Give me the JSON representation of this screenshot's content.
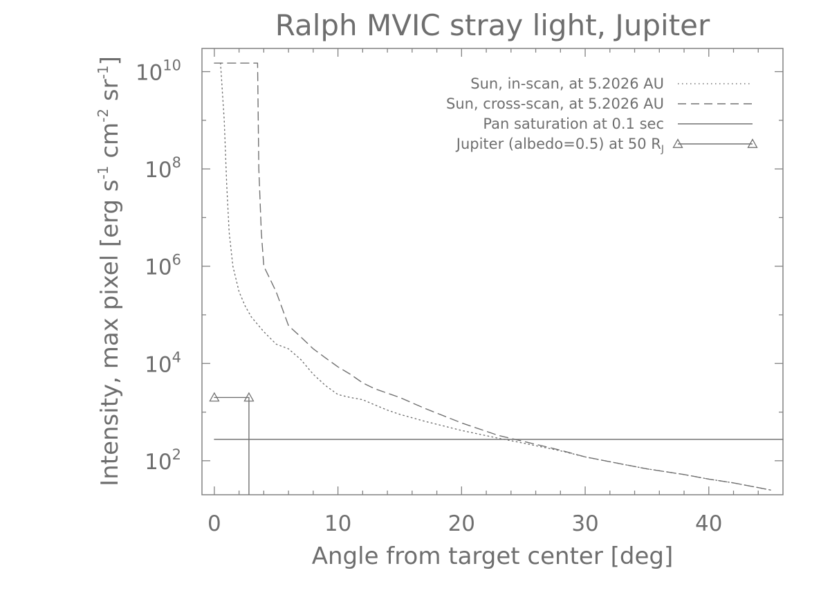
{
  "chart_data": {
    "type": "line",
    "title": "Ralph MVIC stray light, Jupiter",
    "xlabel": "Angle from target center [deg]",
    "ylabel": {
      "prefix": "Intensity, max pixel [erg s",
      "exp1": "-1",
      "mid1": " cm",
      "exp2": "-2",
      "mid2": " sr",
      "exp3": "-1",
      "suffix": "]"
    },
    "x_scale": "linear",
    "y_scale": "log",
    "xlim": [
      -1,
      46
    ],
    "ylim": [
      20,
      30000000000
    ],
    "grid": false,
    "legend_position": "top-right",
    "x_ticks": [
      {
        "value": 0,
        "label": "0"
      },
      {
        "value": 10,
        "label": "10"
      },
      {
        "value": 20,
        "label": "20"
      },
      {
        "value": 30,
        "label": "30"
      },
      {
        "value": 40,
        "label": "40"
      }
    ],
    "y_ticks": [
      {
        "value": 100,
        "base": "10",
        "exp": "2"
      },
      {
        "value": 10000,
        "base": "10",
        "exp": "4"
      },
      {
        "value": 1000000,
        "base": "10",
        "exp": "6"
      },
      {
        "value": 100000000,
        "base": "10",
        "exp": "8"
      },
      {
        "value": 10000000000,
        "base": "10",
        "exp": "10"
      }
    ],
    "series": [
      {
        "name": "Sun, in-scan, at 5.2026 AU",
        "style": "dotted",
        "x": [
          0.5,
          0.8,
          1.0,
          1.2,
          1.5,
          2,
          2.5,
          3,
          4,
          5,
          6,
          7,
          8,
          9,
          10,
          11,
          12,
          13,
          14,
          15,
          17,
          20,
          23,
          25,
          28,
          30,
          33,
          35,
          38,
          40,
          42,
          44,
          45
        ],
        "y": [
          15000000000,
          1000000000,
          50000000,
          5000000,
          1000000,
          300000,
          150000,
          90000,
          45000,
          25000,
          20000,
          12000,
          6000,
          3500,
          2300,
          2000,
          1800,
          1400,
          1100,
          900,
          650,
          420,
          290,
          230,
          160,
          120,
          85,
          68,
          52,
          42,
          35,
          28,
          25
        ]
      },
      {
        "name": "Sun, cross-scan, at 5.2026 AU",
        "style": "dashed",
        "x": [
          0,
          0.8,
          3.5,
          3.6,
          3.8,
          4,
          5,
          6,
          7,
          8,
          9,
          10,
          11,
          12,
          13,
          15,
          17,
          20,
          23,
          25,
          28,
          30,
          33,
          35,
          38,
          40,
          42,
          44,
          45
        ],
        "y": [
          15000000000,
          15000000000,
          15000000000,
          100000000,
          5000000,
          1000000,
          300000,
          60000,
          35000,
          20000,
          13000,
          8500,
          6000,
          4000,
          3000,
          2000,
          1200,
          600,
          330,
          250,
          165,
          120,
          85,
          68,
          52,
          42,
          35,
          28,
          25
        ]
      },
      {
        "name": "Pan saturation at 0.1 sec",
        "style": "solid",
        "x": [
          0,
          46
        ],
        "y": [
          275,
          275
        ]
      },
      {
        "name": "Jupiter (albedo=0.5) at 50 R_J",
        "legend_label": "Jupiter (albedo=0.5) at 50 R",
        "legend_sub": "J",
        "style": "solid-triangle",
        "x": [
          0,
          2.8
        ],
        "y": [
          2000,
          2000
        ],
        "drop_to_axis_at_x": 2.8
      }
    ]
  },
  "colors": {
    "axes": "#808080",
    "text": "#6e6e6e",
    "series": "#707070",
    "background": "#ffffff"
  }
}
